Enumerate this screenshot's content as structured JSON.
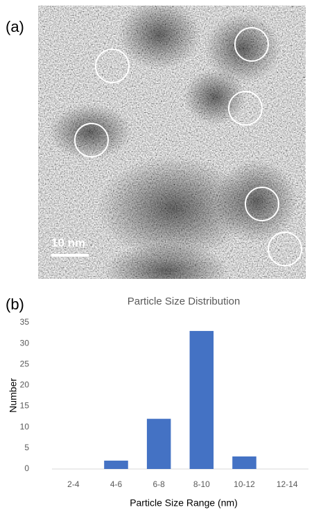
{
  "panel_a": {
    "label": "(a)",
    "scale_bar": "10 nm"
  },
  "panel_b": {
    "label": "(b)"
  },
  "chart_data": {
    "type": "bar",
    "title": "Particle Size Distribution",
    "x_label": "Particle Size Range (nm)",
    "y_label": "Number",
    "categories": [
      "2-4",
      "4-6",
      "6-8",
      "8-10",
      "10-12",
      "12-14"
    ],
    "values": [
      0,
      2,
      12,
      33,
      3,
      0
    ],
    "color": "#4472c4",
    "ylim": [
      0,
      35
    ],
    "yticks": [
      0,
      5,
      10,
      15,
      20,
      25,
      30,
      35
    ],
    "grid": false
  }
}
